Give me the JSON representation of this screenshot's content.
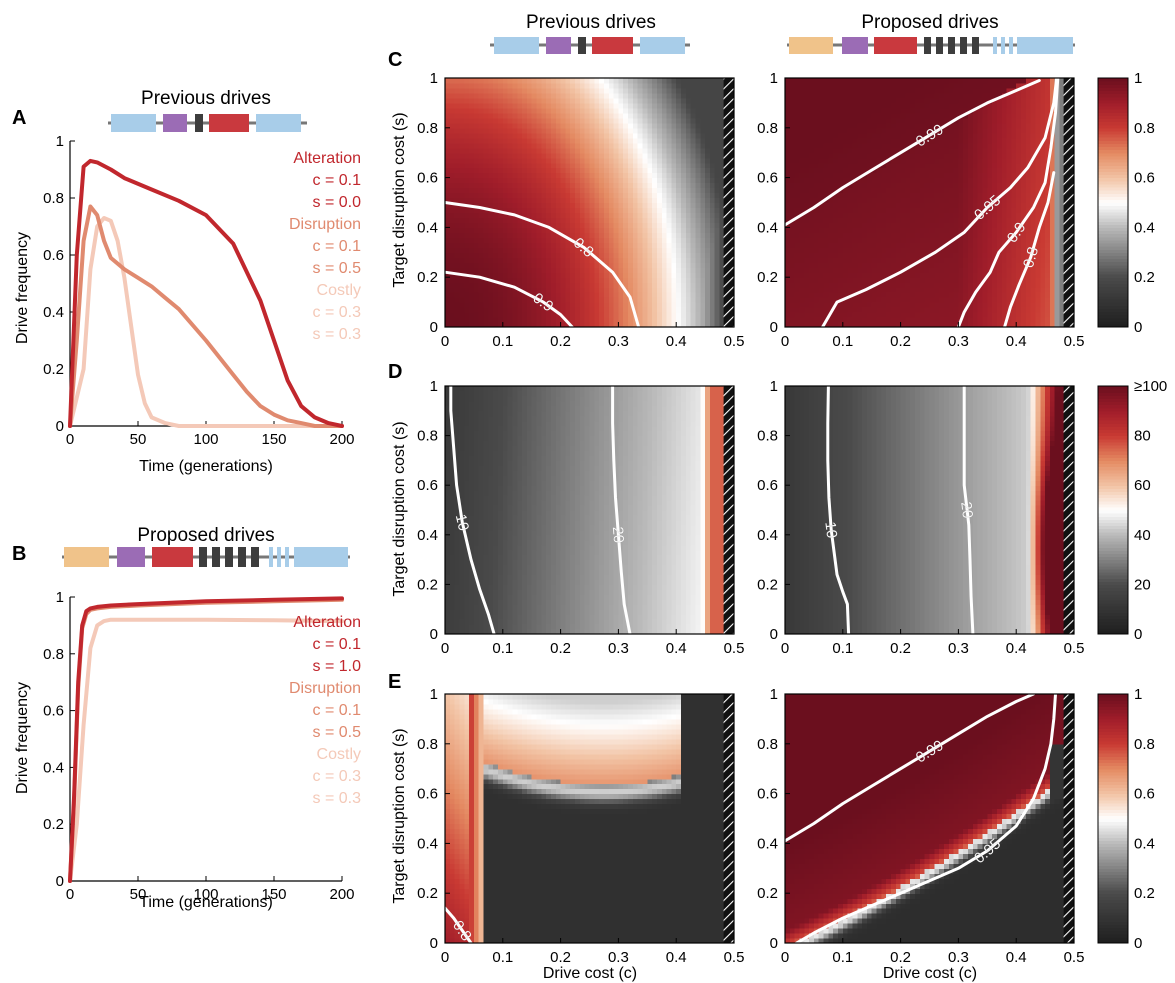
{
  "colors": {
    "alteration": "#c1272d",
    "disruption": "#e08a6f",
    "costly": "#f4c9b8",
    "seg_blue": "#a8cde9",
    "seg_purple": "#9b6cb5",
    "seg_red": "#c9393e",
    "seg_dark": "#3d3d3d",
    "seg_orange": "#f0c38a",
    "backbone": "#777777",
    "diverging_low": "#1e1e1e",
    "diverging_mid": "#ffffff",
    "diverging_high": "#6b0f1e"
  },
  "panel_letters": [
    "A",
    "B",
    "C",
    "D",
    "E"
  ],
  "column_titles": {
    "previous": "Previous drives",
    "proposed": "Proposed drives"
  },
  "common": {
    "xlabel_time": "Time (generations)",
    "ylabel_freq": "Drive frequency",
    "ylabel_s": "Target disruption cost (s)",
    "xlabel_c": "Drive cost (c)"
  },
  "legend_A": [
    {
      "name": "Alteration",
      "c": "c = 0.1",
      "s": "s = 0.0"
    },
    {
      "name": "Disruption",
      "c": "c = 0.1",
      "s": "s = 0.5"
    },
    {
      "name": "Costly",
      "c": "c = 0.3",
      "s": "s = 0.3"
    }
  ],
  "legend_B": [
    {
      "name": "Alteration",
      "c": "c = 0.1",
      "s": "s = 1.0"
    },
    {
      "name": "Disruption",
      "c": "c = 0.1",
      "s": "s = 0.5"
    },
    {
      "name": "Costly",
      "c": "c = 0.3",
      "s": "s = 0.3"
    }
  ],
  "colorbars": [
    {
      "ticks": [
        "0",
        "0.2",
        "0.4",
        "0.6",
        "0.8",
        "1"
      ]
    },
    {
      "ticks": [
        "0",
        "20",
        "40",
        "60",
        "80",
        "≥100"
      ]
    },
    {
      "ticks": [
        "0",
        "0.2",
        "0.4",
        "0.6",
        "0.8",
        "1"
      ]
    }
  ],
  "chart_data": [
    {
      "panel": "A",
      "type": "line",
      "title": "Previous drives",
      "xlabel": "Time (generations)",
      "ylabel": "Drive frequency",
      "xlim": [
        0,
        200
      ],
      "ylim": [
        0,
        1
      ],
      "xticks": [
        "0",
        "50",
        "100",
        "150",
        "200"
      ],
      "yticks": [
        "0",
        "0.2",
        "0.4",
        "0.6",
        "0.8",
        "1"
      ],
      "series": [
        {
          "name": "Alteration",
          "x": [
            0,
            5,
            10,
            15,
            20,
            30,
            40,
            60,
            80,
            100,
            120,
            140,
            150,
            160,
            170,
            180,
            190,
            200
          ],
          "y": [
            0,
            0.6,
            0.91,
            0.93,
            0.925,
            0.9,
            0.87,
            0.83,
            0.79,
            0.74,
            0.64,
            0.44,
            0.3,
            0.16,
            0.07,
            0.03,
            0.01,
            0
          ]
        },
        {
          "name": "Disruption",
          "x": [
            0,
            5,
            10,
            15,
            20,
            25,
            30,
            40,
            50,
            60,
            70,
            80,
            100,
            120,
            130,
            140,
            150,
            160,
            170,
            180,
            200
          ],
          "y": [
            0,
            0.3,
            0.65,
            0.77,
            0.74,
            0.65,
            0.59,
            0.55,
            0.52,
            0.49,
            0.45,
            0.41,
            0.3,
            0.18,
            0.12,
            0.07,
            0.04,
            0.02,
            0.01,
            0,
            0
          ]
        },
        {
          "name": "Costly",
          "x": [
            0,
            10,
            15,
            20,
            25,
            30,
            35,
            40,
            45,
            50,
            55,
            60,
            70,
            80,
            100,
            200
          ],
          "y": [
            0,
            0.2,
            0.55,
            0.7,
            0.73,
            0.72,
            0.65,
            0.52,
            0.35,
            0.18,
            0.08,
            0.03,
            0.01,
            0,
            0,
            0
          ]
        }
      ]
    },
    {
      "panel": "B",
      "type": "line",
      "title": "Proposed drives",
      "xlabel": "Time (generations)",
      "ylabel": "Drive frequency",
      "xlim": [
        0,
        200
      ],
      "ylim": [
        0,
        1
      ],
      "xticks": [
        "0",
        "50",
        "100",
        "150",
        "200"
      ],
      "yticks": [
        "0",
        "0.2",
        "0.4",
        "0.6",
        "0.8",
        "1"
      ],
      "series": [
        {
          "name": "Alteration",
          "x": [
            0,
            3,
            6,
            9,
            12,
            15,
            20,
            30,
            50,
            100,
            150,
            200
          ],
          "y": [
            0,
            0.3,
            0.7,
            0.9,
            0.95,
            0.96,
            0.965,
            0.97,
            0.975,
            0.985,
            0.99,
            0.995
          ]
        },
        {
          "name": "Disruption",
          "x": [
            0,
            3,
            6,
            9,
            12,
            15,
            20,
            30,
            50,
            100,
            150,
            200
          ],
          "y": [
            0,
            0.28,
            0.68,
            0.89,
            0.94,
            0.955,
            0.96,
            0.965,
            0.97,
            0.98,
            0.985,
            0.99
          ]
        },
        {
          "name": "Costly",
          "x": [
            0,
            5,
            10,
            15,
            20,
            25,
            30,
            50,
            100,
            150,
            200
          ],
          "y": [
            0,
            0.2,
            0.55,
            0.82,
            0.9,
            0.915,
            0.92,
            0.92,
            0.92,
            0.918,
            0.915
          ]
        }
      ]
    },
    {
      "panel": "C-previous",
      "type": "heatmap",
      "column": "Previous drives",
      "xlabel": "",
      "ylabel": "Target disruption cost (s)",
      "xlim": [
        0,
        0.5
      ],
      "ylim": [
        0,
        1
      ],
      "xticks": [
        "0",
        "0.1",
        "0.2",
        "0.3",
        "0.4",
        "0.5"
      ],
      "yticks": [
        "0",
        "0.2",
        "0.4",
        "0.6",
        "0.8",
        "1"
      ],
      "contours": [
        {
          "label": "0.8",
          "points": [
            [
              0,
              0.5
            ],
            [
              0.06,
              0.48
            ],
            [
              0.12,
              0.45
            ],
            [
              0.18,
              0.4
            ],
            [
              0.24,
              0.32
            ],
            [
              0.29,
              0.22
            ],
            [
              0.32,
              0.12
            ],
            [
              0.335,
              0
            ]
          ]
        },
        {
          "label": "0.9",
          "points": [
            [
              0,
              0.22
            ],
            [
              0.06,
              0.2
            ],
            [
              0.12,
              0.16
            ],
            [
              0.17,
              0.1
            ],
            [
              0.2,
              0.05
            ],
            [
              0.22,
              0
            ]
          ]
        }
      ]
    },
    {
      "panel": "C-proposed",
      "type": "heatmap",
      "column": "Proposed drives",
      "xlabel": "",
      "ylabel": "",
      "xlim": [
        0,
        0.5
      ],
      "ylim": [
        0,
        1
      ],
      "xticks": [
        "0",
        "0.1",
        "0.2",
        "0.3",
        "0.4",
        "0.5"
      ],
      "yticks": [
        "0",
        "0.2",
        "0.4",
        "0.6",
        "0.8",
        "1"
      ],
      "contours": [
        {
          "label": "0.99",
          "points": [
            [
              0,
              0.41
            ],
            [
              0.05,
              0.48
            ],
            [
              0.1,
              0.56
            ],
            [
              0.15,
              0.63
            ],
            [
              0.2,
              0.7
            ],
            [
              0.25,
              0.77
            ],
            [
              0.3,
              0.84
            ],
            [
              0.35,
              0.9
            ],
            [
              0.4,
              0.95
            ],
            [
              0.44,
              0.99
            ]
          ]
        },
        {
          "label": "0.95",
          "points": [
            [
              0.065,
              0
            ],
            [
              0.09,
              0.1
            ],
            [
              0.14,
              0.15
            ],
            [
              0.2,
              0.22
            ],
            [
              0.26,
              0.3
            ],
            [
              0.31,
              0.38
            ],
            [
              0.35,
              0.48
            ],
            [
              0.39,
              0.56
            ],
            [
              0.42,
              0.64
            ],
            [
              0.45,
              0.76
            ],
            [
              0.465,
              0.9
            ],
            [
              0.47,
              1
            ]
          ]
        },
        {
          "label": "0.9",
          "points": [
            [
              0.3,
              0
            ],
            [
              0.31,
              0.06
            ],
            [
              0.33,
              0.14
            ],
            [
              0.355,
              0.22
            ],
            [
              0.37,
              0.3
            ],
            [
              0.4,
              0.38
            ],
            [
              0.43,
              0.48
            ],
            [
              0.45,
              0.58
            ],
            [
              0.46,
              0.72
            ],
            [
              0.468,
              0.86
            ],
            [
              0.472,
              1
            ]
          ]
        },
        {
          "label": "0.8",
          "points": [
            [
              0.38,
              0
            ],
            [
              0.39,
              0.08
            ],
            [
              0.405,
              0.17
            ],
            [
              0.425,
              0.28
            ],
            [
              0.44,
              0.4
            ],
            [
              0.455,
              0.5
            ],
            [
              0.465,
              0.62
            ]
          ]
        }
      ]
    },
    {
      "panel": "D-previous",
      "type": "heatmap",
      "column": "Previous drives",
      "xlabel": "",
      "ylabel": "Target disruption cost (s)",
      "xlim": [
        0,
        0.5
      ],
      "ylim": [
        0,
        1
      ],
      "xticks": [
        "0",
        "0.1",
        "0.2",
        "0.3",
        "0.4",
        "0.5"
      ],
      "yticks": [
        "0",
        "0.2",
        "0.4",
        "0.6",
        "0.8",
        "1"
      ],
      "contours": [
        {
          "label": "10",
          "points": [
            [
              0.01,
              1
            ],
            [
              0.01,
              0.9
            ],
            [
              0.015,
              0.75
            ],
            [
              0.02,
              0.6
            ],
            [
              0.03,
              0.45
            ],
            [
              0.045,
              0.3
            ],
            [
              0.06,
              0.18
            ],
            [
              0.075,
              0.08
            ],
            [
              0.085,
              0
            ]
          ]
        },
        {
          "label": "20",
          "points": [
            [
              0.29,
              1
            ],
            [
              0.29,
              0.85
            ],
            [
              0.292,
              0.7
            ],
            [
              0.295,
              0.55
            ],
            [
              0.3,
              0.4
            ],
            [
              0.305,
              0.25
            ],
            [
              0.31,
              0.12
            ],
            [
              0.32,
              0
            ]
          ]
        }
      ]
    },
    {
      "panel": "D-proposed",
      "type": "heatmap",
      "column": "Proposed drives",
      "xlabel": "",
      "ylabel": "",
      "xlim": [
        0,
        0.5
      ],
      "ylim": [
        0,
        1
      ],
      "xticks": [
        "0",
        "0.1",
        "0.2",
        "0.3",
        "0.4",
        "0.5"
      ],
      "yticks": [
        "0",
        "0.2",
        "0.4",
        "0.6",
        "0.8",
        "1"
      ],
      "contours": [
        {
          "label": "10",
          "points": [
            [
              0.075,
              1
            ],
            [
              0.074,
              0.85
            ],
            [
              0.074,
              0.7
            ],
            [
              0.076,
              0.55
            ],
            [
              0.08,
              0.42
            ],
            [
              0.09,
              0.24
            ],
            [
              0.1,
              0.17
            ],
            [
              0.108,
              0.12
            ],
            [
              0.11,
              0
            ]
          ]
        },
        {
          "label": "20",
          "points": [
            [
              0.31,
              1
            ],
            [
              0.31,
              0.85
            ],
            [
              0.31,
              0.7
            ],
            [
              0.31,
              0.6
            ],
            [
              0.315,
              0.5
            ],
            [
              0.318,
              0.44
            ],
            [
              0.32,
              0.3
            ],
            [
              0.322,
              0.15
            ],
            [
              0.325,
              0
            ]
          ]
        }
      ]
    },
    {
      "panel": "E-previous",
      "type": "heatmap",
      "column": "Previous drives",
      "xlabel": "Drive cost (c)",
      "ylabel": "Target disruption cost (s)",
      "xlim": [
        0,
        0.5
      ],
      "ylim": [
        0,
        1
      ],
      "xticks": [
        "0",
        "0.1",
        "0.2",
        "0.3",
        "0.4",
        "0.5"
      ],
      "yticks": [
        "0",
        "0.2",
        "0.4",
        "0.6",
        "0.8",
        "1"
      ],
      "contours": [
        {
          "label": "0.8",
          "points": [
            [
              0,
              0.14
            ],
            [
              0.015,
              0.1
            ],
            [
              0.03,
              0.05
            ],
            [
              0.045,
              0
            ]
          ]
        }
      ]
    },
    {
      "panel": "E-proposed",
      "type": "heatmap",
      "column": "Proposed drives",
      "xlabel": "Drive cost (c)",
      "ylabel": "",
      "xlim": [
        0,
        0.5
      ],
      "ylim": [
        0,
        1
      ],
      "xticks": [
        "0",
        "0.1",
        "0.2",
        "0.3",
        "0.4",
        "0.5"
      ],
      "yticks": [
        "0",
        "0.2",
        "0.4",
        "0.6",
        "0.8",
        "1"
      ],
      "contours": [
        {
          "label": "0.99",
          "points": [
            [
              0,
              0.41
            ],
            [
              0.05,
              0.48
            ],
            [
              0.1,
              0.56
            ],
            [
              0.15,
              0.63
            ],
            [
              0.2,
              0.7
            ],
            [
              0.25,
              0.77
            ],
            [
              0.3,
              0.84
            ],
            [
              0.35,
              0.91
            ],
            [
              0.4,
              0.97
            ],
            [
              0.43,
              1
            ]
          ]
        },
        {
          "label": "0.95",
          "points": [
            [
              0.02,
              0
            ],
            [
              0.05,
              0.04
            ],
            [
              0.1,
              0.1
            ],
            [
              0.15,
              0.15
            ],
            [
              0.2,
              0.2
            ],
            [
              0.25,
              0.25
            ],
            [
              0.3,
              0.3
            ],
            [
              0.35,
              0.37
            ],
            [
              0.4,
              0.47
            ],
            [
              0.43,
              0.58
            ],
            [
              0.45,
              0.7
            ],
            [
              0.46,
              0.8
            ],
            [
              0.465,
              0.9
            ],
            [
              0.468,
              1
            ]
          ]
        }
      ]
    }
  ]
}
